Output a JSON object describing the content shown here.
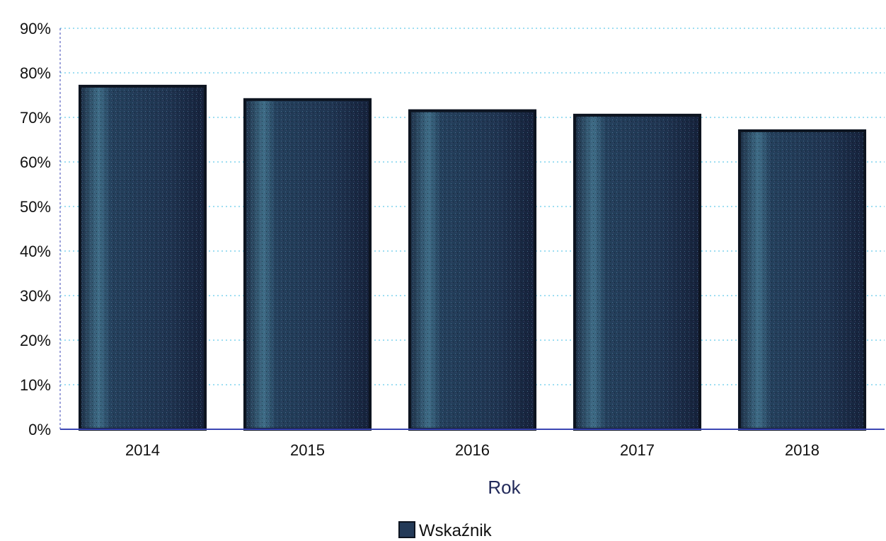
{
  "chart_data": {
    "type": "bar",
    "categories": [
      "2014",
      "2015",
      "2016",
      "2017",
      "2018"
    ],
    "series": [
      {
        "name": "Wskaźnik",
        "values": [
          77,
          74,
          71.5,
          70.5,
          67
        ]
      }
    ],
    "xlabel": "Rok",
    "ylabel": "",
    "ylim": [
      0,
      90
    ],
    "yticks": [
      "0%",
      "10%",
      "20%",
      "30%",
      "40%",
      "50%",
      "60%",
      "70%",
      "80%",
      "90%"
    ],
    "ytick_values": [
      0,
      10,
      20,
      30,
      40,
      50,
      60,
      70,
      80,
      90
    ],
    "grid": true,
    "legend_position": "bottom",
    "colors": {
      "bar_fill": "#233a58",
      "bar_edge": "#0d1420",
      "grid": "#7fd3ee",
      "axis": "#3b46b4"
    }
  }
}
